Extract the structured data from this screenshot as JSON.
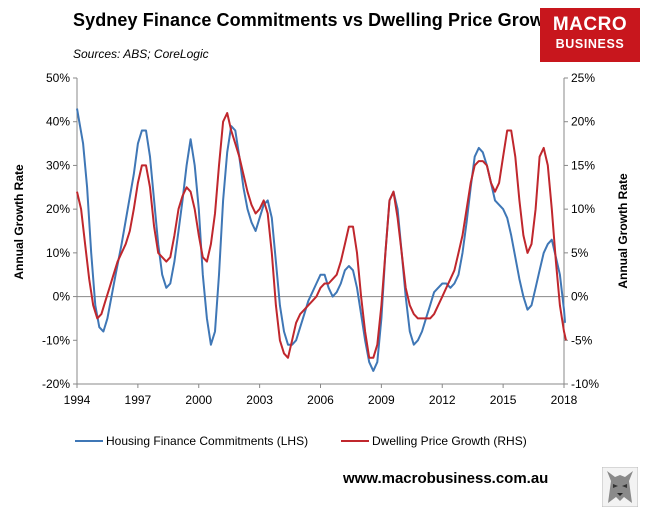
{
  "header": {
    "title": "Sydney Finance Commitments vs Dwelling Price Growth",
    "subtitle": "Sources: ABS; CoreLogic"
  },
  "logo": {
    "line1": "MACRO",
    "line2": "BUSINESS",
    "color": "#c8161d"
  },
  "footer": {
    "url": "www.macrobusiness.com.au"
  },
  "chart_data": {
    "type": "line",
    "left_axis": {
      "label": "Annual Growth Rate",
      "range": [
        -20,
        50
      ],
      "ticks": [
        "-20%",
        "-10%",
        "0%",
        "10%",
        "20%",
        "30%",
        "40%",
        "50%"
      ]
    },
    "right_axis": {
      "label": "Annual Growth Rate",
      "range": [
        -10,
        25
      ],
      "ticks": [
        "-10%",
        "-5%",
        "0%",
        "5%",
        "10%",
        "15%",
        "20%",
        "25%"
      ]
    },
    "x_range": [
      1994,
      2018
    ],
    "x_ticks": [
      "1994",
      "1997",
      "2000",
      "2003",
      "2006",
      "2009",
      "2012",
      "2015",
      "2018"
    ],
    "grid": false,
    "legend": "bottom",
    "series": [
      {
        "name": "Housing Finance Commitments (LHS)",
        "axis": "left",
        "color": "#3f77b6",
        "points": [
          [
            1994.0,
            43
          ],
          [
            1994.3,
            35
          ],
          [
            1994.5,
            25
          ],
          [
            1994.7,
            10
          ],
          [
            1994.9,
            -2
          ],
          [
            1995.1,
            -7
          ],
          [
            1995.3,
            -8
          ],
          [
            1995.5,
            -5
          ],
          [
            1995.7,
            0
          ],
          [
            1995.9,
            5
          ],
          [
            1996.2,
            12
          ],
          [
            1996.5,
            20
          ],
          [
            1996.8,
            28
          ],
          [
            1997.0,
            35
          ],
          [
            1997.2,
            38
          ],
          [
            1997.4,
            38
          ],
          [
            1997.6,
            32
          ],
          [
            1997.8,
            22
          ],
          [
            1998.0,
            12
          ],
          [
            1998.2,
            5
          ],
          [
            1998.4,
            2
          ],
          [
            1998.6,
            3
          ],
          [
            1998.8,
            8
          ],
          [
            1999.0,
            15
          ],
          [
            1999.2,
            22
          ],
          [
            1999.4,
            30
          ],
          [
            1999.6,
            36
          ],
          [
            1999.8,
            30
          ],
          [
            2000.0,
            20
          ],
          [
            2000.2,
            5
          ],
          [
            2000.4,
            -5
          ],
          [
            2000.6,
            -11
          ],
          [
            2000.8,
            -8
          ],
          [
            2001.0,
            5
          ],
          [
            2001.2,
            22
          ],
          [
            2001.4,
            33
          ],
          [
            2001.6,
            39
          ],
          [
            2001.8,
            38
          ],
          [
            2002.0,
            32
          ],
          [
            2002.2,
            25
          ],
          [
            2002.4,
            20
          ],
          [
            2002.6,
            17
          ],
          [
            2002.8,
            15
          ],
          [
            2003.0,
            18
          ],
          [
            2003.2,
            21
          ],
          [
            2003.4,
            22
          ],
          [
            2003.6,
            18
          ],
          [
            2003.8,
            8
          ],
          [
            2004.0,
            -2
          ],
          [
            2004.2,
            -8
          ],
          [
            2004.4,
            -11
          ],
          [
            2004.6,
            -11
          ],
          [
            2004.8,
            -10
          ],
          [
            2005.0,
            -7
          ],
          [
            2005.2,
            -4
          ],
          [
            2005.4,
            -1
          ],
          [
            2005.6,
            1
          ],
          [
            2005.8,
            3
          ],
          [
            2006.0,
            5
          ],
          [
            2006.2,
            5
          ],
          [
            2006.4,
            2
          ],
          [
            2006.6,
            0
          ],
          [
            2006.8,
            1
          ],
          [
            2007.0,
            3
          ],
          [
            2007.2,
            6
          ],
          [
            2007.4,
            7
          ],
          [
            2007.6,
            6
          ],
          [
            2007.8,
            2
          ],
          [
            2008.0,
            -4
          ],
          [
            2008.2,
            -10
          ],
          [
            2008.4,
            -15
          ],
          [
            2008.6,
            -17
          ],
          [
            2008.8,
            -15
          ],
          [
            2009.0,
            -5
          ],
          [
            2009.2,
            10
          ],
          [
            2009.4,
            22
          ],
          [
            2009.6,
            24
          ],
          [
            2009.8,
            20
          ],
          [
            2010.0,
            10
          ],
          [
            2010.2,
            0
          ],
          [
            2010.4,
            -8
          ],
          [
            2010.6,
            -11
          ],
          [
            2010.8,
            -10
          ],
          [
            2011.0,
            -8
          ],
          [
            2011.2,
            -5
          ],
          [
            2011.4,
            -2
          ],
          [
            2011.6,
            1
          ],
          [
            2011.8,
            2
          ],
          [
            2012.0,
            3
          ],
          [
            2012.2,
            3
          ],
          [
            2012.4,
            2
          ],
          [
            2012.6,
            3
          ],
          [
            2012.8,
            5
          ],
          [
            2013.0,
            10
          ],
          [
            2013.2,
            17
          ],
          [
            2013.4,
            25
          ],
          [
            2013.6,
            32
          ],
          [
            2013.8,
            34
          ],
          [
            2014.0,
            33
          ],
          [
            2014.2,
            30
          ],
          [
            2014.4,
            26
          ],
          [
            2014.6,
            22
          ],
          [
            2014.8,
            21
          ],
          [
            2015.0,
            20
          ],
          [
            2015.2,
            18
          ],
          [
            2015.4,
            14
          ],
          [
            2015.6,
            9
          ],
          [
            2015.8,
            4
          ],
          [
            2016.0,
            0
          ],
          [
            2016.2,
            -3
          ],
          [
            2016.4,
            -2
          ],
          [
            2016.6,
            2
          ],
          [
            2016.8,
            6
          ],
          [
            2017.0,
            10
          ],
          [
            2017.2,
            12
          ],
          [
            2017.4,
            13
          ],
          [
            2017.6,
            9
          ],
          [
            2017.8,
            5
          ],
          [
            2018.0,
            -3
          ],
          [
            2018.05,
            -6
          ]
        ]
      },
      {
        "name": "Dwelling Price Growth (RHS)",
        "axis": "right",
        "color": "#c0272d",
        "points": [
          [
            1994.0,
            12
          ],
          [
            1994.2,
            10
          ],
          [
            1994.4,
            6
          ],
          [
            1994.6,
            2
          ],
          [
            1994.8,
            -1
          ],
          [
            1995.0,
            -2.5
          ],
          [
            1995.2,
            -2
          ],
          [
            1995.4,
            -0.5
          ],
          [
            1995.6,
            1
          ],
          [
            1995.8,
            2.5
          ],
          [
            1996.0,
            4
          ],
          [
            1996.2,
            5
          ],
          [
            1996.4,
            6
          ],
          [
            1996.6,
            7.5
          ],
          [
            1996.8,
            10
          ],
          [
            1997.0,
            13
          ],
          [
            1997.2,
            15
          ],
          [
            1997.4,
            15
          ],
          [
            1997.6,
            12.5
          ],
          [
            1997.8,
            8
          ],
          [
            1998.0,
            5
          ],
          [
            1998.2,
            4.5
          ],
          [
            1998.4,
            4
          ],
          [
            1998.6,
            4.5
          ],
          [
            1998.8,
            7
          ],
          [
            1999.0,
            10
          ],
          [
            1999.2,
            11.5
          ],
          [
            1999.4,
            12.5
          ],
          [
            1999.6,
            12
          ],
          [
            1999.8,
            10
          ],
          [
            2000.0,
            7
          ],
          [
            2000.2,
            4.5
          ],
          [
            2000.4,
            4
          ],
          [
            2000.6,
            6
          ],
          [
            2000.8,
            9.5
          ],
          [
            2001.0,
            15
          ],
          [
            2001.2,
            20
          ],
          [
            2001.4,
            21
          ],
          [
            2001.6,
            19
          ],
          [
            2001.8,
            17.5
          ],
          [
            2002.0,
            16
          ],
          [
            2002.2,
            14
          ],
          [
            2002.4,
            12
          ],
          [
            2002.6,
            10.5
          ],
          [
            2002.8,
            9.5
          ],
          [
            2003.0,
            10
          ],
          [
            2003.2,
            11
          ],
          [
            2003.4,
            9.5
          ],
          [
            2003.6,
            5
          ],
          [
            2003.8,
            -1
          ],
          [
            2004.0,
            -5
          ],
          [
            2004.2,
            -6.5
          ],
          [
            2004.4,
            -7
          ],
          [
            2004.6,
            -5
          ],
          [
            2004.8,
            -3
          ],
          [
            2005.0,
            -2
          ],
          [
            2005.2,
            -1.5
          ],
          [
            2005.4,
            -1
          ],
          [
            2005.6,
            -0.5
          ],
          [
            2005.8,
            0
          ],
          [
            2006.0,
            1
          ],
          [
            2006.2,
            1.5
          ],
          [
            2006.4,
            1.5
          ],
          [
            2006.6,
            2
          ],
          [
            2006.8,
            2.5
          ],
          [
            2007.0,
            4
          ],
          [
            2007.2,
            6
          ],
          [
            2007.4,
            8
          ],
          [
            2007.6,
            8
          ],
          [
            2007.8,
            5
          ],
          [
            2008.0,
            0
          ],
          [
            2008.2,
            -4
          ],
          [
            2008.4,
            -7
          ],
          [
            2008.6,
            -7
          ],
          [
            2008.8,
            -5.5
          ],
          [
            2009.0,
            -1
          ],
          [
            2009.2,
            5
          ],
          [
            2009.4,
            11
          ],
          [
            2009.6,
            12
          ],
          [
            2009.8,
            9
          ],
          [
            2010.0,
            5
          ],
          [
            2010.2,
            1
          ],
          [
            2010.4,
            -1
          ],
          [
            2010.6,
            -2
          ],
          [
            2010.8,
            -2.5
          ],
          [
            2011.0,
            -2.5
          ],
          [
            2011.2,
            -2.5
          ],
          [
            2011.4,
            -2.5
          ],
          [
            2011.6,
            -2
          ],
          [
            2011.8,
            -1
          ],
          [
            2012.0,
            0
          ],
          [
            2012.2,
            1
          ],
          [
            2012.4,
            2
          ],
          [
            2012.6,
            3
          ],
          [
            2012.8,
            5
          ],
          [
            2013.0,
            7
          ],
          [
            2013.2,
            10
          ],
          [
            2013.4,
            13
          ],
          [
            2013.6,
            15
          ],
          [
            2013.8,
            15.5
          ],
          [
            2014.0,
            15.5
          ],
          [
            2014.2,
            15
          ],
          [
            2014.4,
            13
          ],
          [
            2014.6,
            12
          ],
          [
            2014.8,
            13
          ],
          [
            2015.0,
            16
          ],
          [
            2015.2,
            19
          ],
          [
            2015.4,
            19
          ],
          [
            2015.6,
            16
          ],
          [
            2015.8,
            11
          ],
          [
            2016.0,
            7
          ],
          [
            2016.2,
            5
          ],
          [
            2016.4,
            6
          ],
          [
            2016.6,
            10
          ],
          [
            2016.8,
            16
          ],
          [
            2017.0,
            17
          ],
          [
            2017.2,
            15
          ],
          [
            2017.4,
            10
          ],
          [
            2017.6,
            4
          ],
          [
            2017.8,
            -1
          ],
          [
            2018.0,
            -4
          ],
          [
            2018.1,
            -5
          ]
        ]
      }
    ]
  }
}
